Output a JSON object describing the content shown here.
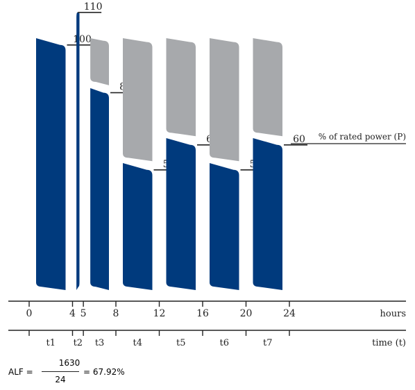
{
  "chart_data": {
    "type": "bar",
    "x_ticks": [
      0,
      4,
      5,
      8,
      12,
      16,
      20,
      24
    ],
    "x_unit": "hours",
    "period_row_label": "time (t)",
    "y_axis_label": "% of rated power (P)",
    "segments": [
      {
        "name": "t1",
        "start": 0,
        "end": 4,
        "value": 100,
        "value_label": "100"
      },
      {
        "name": "t2",
        "start": 4,
        "end": 5,
        "value": 110,
        "value_label": "110"
      },
      {
        "name": "t3",
        "start": 5,
        "end": 8,
        "value": 80,
        "value_label": "80"
      },
      {
        "name": "t4",
        "start": 8,
        "end": 12,
        "value": 50,
        "value_label": "50"
      },
      {
        "name": "t5",
        "start": 12,
        "end": 16,
        "value": 60,
        "value_label": "60"
      },
      {
        "name": "t6",
        "start": 16,
        "end": 20,
        "value": 50,
        "value_label": "50"
      },
      {
        "name": "t7",
        "start": 20,
        "end": 24,
        "value": 60,
        "value_label": "60"
      }
    ],
    "reference_max": 100,
    "colors": {
      "load": "#003a7d",
      "unused": "#a7a9ac"
    }
  },
  "alf": {
    "label": "ALF =",
    "numerator": "1630",
    "denominator": "24",
    "result": "= 67.92%"
  }
}
